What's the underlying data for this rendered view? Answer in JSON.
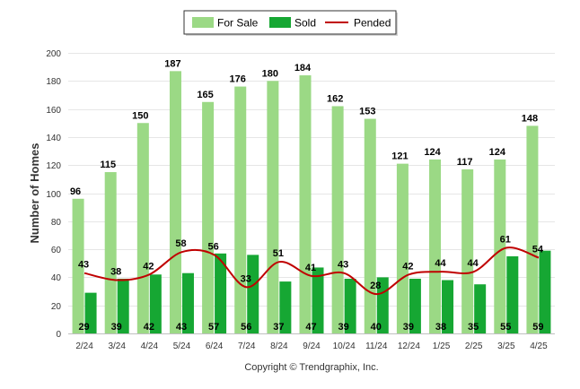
{
  "legend": {
    "items": [
      {
        "label": "For Sale",
        "color": "#9bd985",
        "kind": "bar"
      },
      {
        "label": "Sold",
        "color": "#16a733",
        "kind": "bar"
      },
      {
        "label": "Pended",
        "color": "#c00000",
        "kind": "line"
      }
    ],
    "placement": "top-center"
  },
  "footer": {
    "copyright": "Copyright © Trendgraphix, Inc."
  },
  "chart_data": {
    "type": "bar",
    "categories": [
      "2/24",
      "3/24",
      "4/24",
      "5/24",
      "6/24",
      "7/24",
      "8/24",
      "9/24",
      "10/24",
      "11/24",
      "12/24",
      "1/25",
      "2/25",
      "3/25",
      "4/25"
    ],
    "series": [
      {
        "name": "For Sale",
        "type": "bar",
        "color": "#9bd985",
        "values": [
          96,
          115,
          150,
          187,
          165,
          176,
          180,
          184,
          162,
          153,
          121,
          124,
          117,
          124,
          148
        ]
      },
      {
        "name": "Sold",
        "type": "bar",
        "color": "#16a733",
        "values": [
          29,
          39,
          42,
          43,
          57,
          56,
          37,
          47,
          39,
          40,
          39,
          38,
          35,
          55,
          59
        ]
      },
      {
        "name": "Pended",
        "type": "line",
        "color": "#c00000",
        "values": [
          43,
          38,
          42,
          58,
          56,
          33,
          51,
          41,
          43,
          28,
          42,
          44,
          44,
          61,
          54
        ]
      }
    ],
    "ylabel": "Number of Homes",
    "xlabel": "",
    "ylim": [
      0,
      200
    ],
    "yticks": [
      0,
      20,
      40,
      60,
      80,
      100,
      120,
      140,
      160,
      180,
      200
    ],
    "grid": true,
    "legend_placement": "top-center"
  }
}
